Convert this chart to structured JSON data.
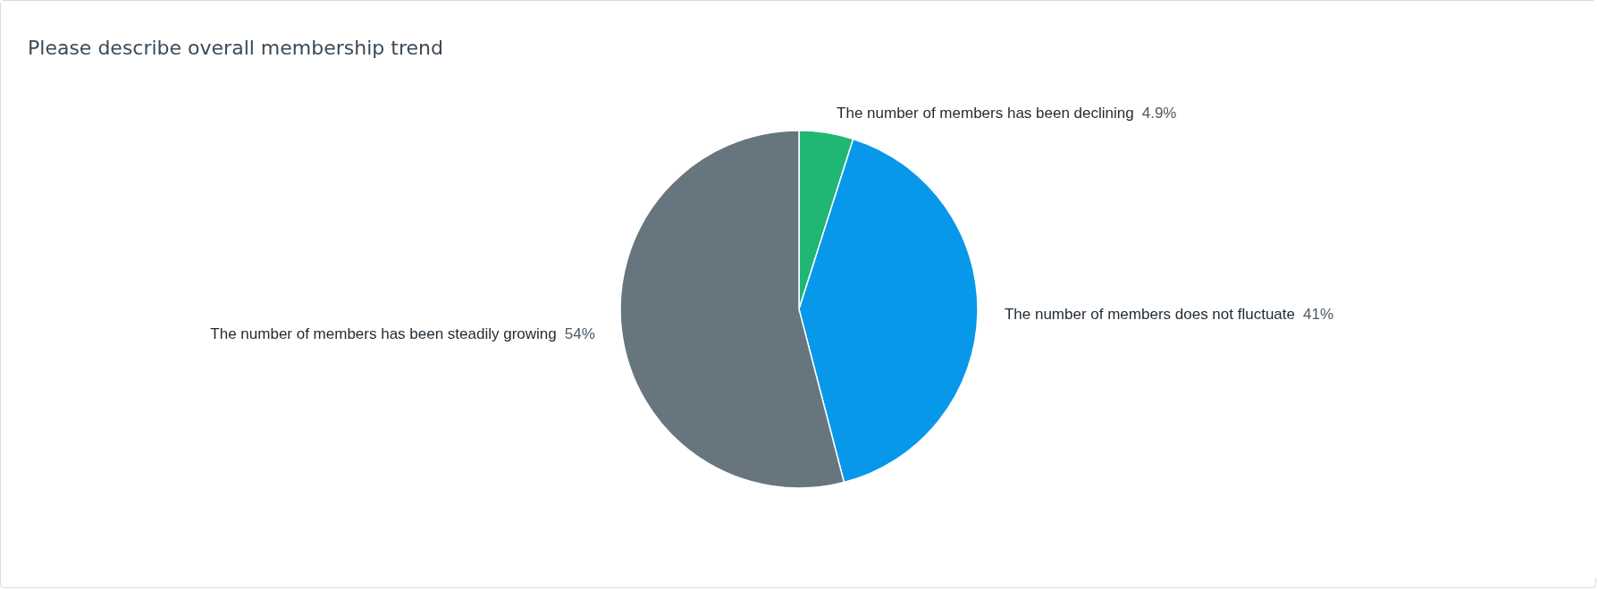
{
  "chart_data": {
    "type": "pie",
    "title": "Please describe overall membership trend",
    "categories": [
      "The number of members has been declining",
      "The number of members does not fluctuate",
      "The number of members has been steadily growing"
    ],
    "values": [
      4.9,
      41,
      54
    ],
    "colors": [
      "#20b673",
      "#0898ea",
      "#67757e"
    ],
    "value_labels": [
      "4.9%",
      "41%",
      "54%"
    ],
    "legend": false
  }
}
